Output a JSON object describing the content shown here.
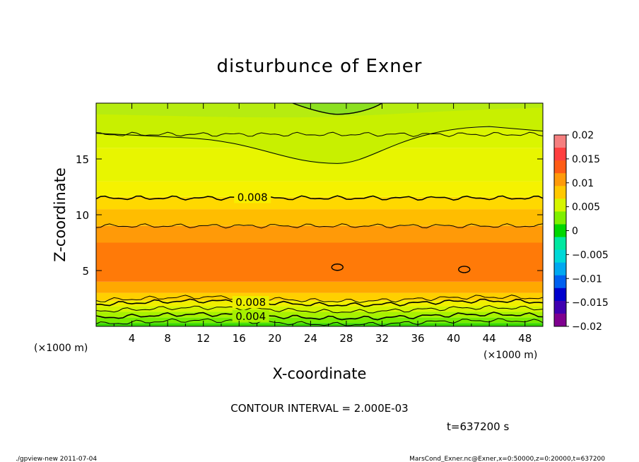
{
  "chart_data": {
    "type": "heatmap",
    "title": "disturbunce of Exner",
    "xlabel": "X-coordinate",
    "ylabel": "Z-coordinate",
    "x_unit_left": "(×1000 m)",
    "x_unit_right": "(×1000 m)",
    "xlim": [
      0,
      50
    ],
    "ylim": [
      0,
      20
    ],
    "x_ticks": [
      "4",
      "8",
      "12",
      "16",
      "20",
      "24",
      "28",
      "32",
      "36",
      "40",
      "44",
      "48"
    ],
    "y_ticks": [
      "5",
      "10",
      "15"
    ],
    "colorbar": {
      "min": -0.02,
      "max": 0.02,
      "ticks": [
        "0.02",
        "0.015",
        "0.01",
        "0.005",
        "0",
        "−0.005",
        "−0.01",
        "−0.015",
        "−0.02"
      ],
      "colors": [
        "#f57f7f",
        "#ff3f3f",
        "#ff5c15",
        "#ff9a0a",
        "#ffc800",
        "#d6f500",
        "#7ff000",
        "#00d700",
        "#00e8a0",
        "#00d8d8",
        "#00a8f0",
        "#0060f0",
        "#0000cd",
        "#4000b0",
        "#7f008f"
      ]
    },
    "contour_interval_text": "CONTOUR INTERVAL = 2.000E-03",
    "contour_labels": [
      "0.008",
      "0.008",
      "0.004"
    ],
    "bands": [
      {
        "z": [
          0.0,
          0.3
        ],
        "value": 0.0005,
        "color": "#38d800"
      },
      {
        "z": [
          0.3,
          0.8
        ],
        "value": 0.002,
        "color": "#76ec00"
      },
      {
        "z": [
          0.8,
          1.3
        ],
        "value": 0.004,
        "color": "#a8f200"
      },
      {
        "z": [
          1.3,
          1.8
        ],
        "value": 0.006,
        "color": "#d2f400"
      },
      {
        "z": [
          1.8,
          2.3
        ],
        "value": 0.008,
        "color": "#f0ef00"
      },
      {
        "z": [
          2.3,
          3.0
        ],
        "value": 0.009,
        "color": "#ffd000"
      },
      {
        "z": [
          3.0,
          4.0
        ],
        "value": 0.01,
        "color": "#ffa800"
      },
      {
        "z": [
          4.0,
          7.5
        ],
        "value": 0.012,
        "color": "#ff7a08"
      },
      {
        "z": [
          7.5,
          9.0
        ],
        "value": 0.011,
        "color": "#ff9a08"
      },
      {
        "z": [
          9.0,
          10.5
        ],
        "value": 0.01,
        "color": "#ffbd00"
      },
      {
        "z": [
          10.5,
          11.6
        ],
        "value": 0.009,
        "color": "#ffd800"
      },
      {
        "z": [
          11.6,
          13.0
        ],
        "value": 0.008,
        "color": "#f5f200"
      },
      {
        "z": [
          13.0,
          16.0
        ],
        "value": 0.007,
        "color": "#e8f500"
      },
      {
        "z": [
          16.0,
          17.8
        ],
        "value": 0.006,
        "color": "#daf500"
      },
      {
        "z": [
          17.8,
          20.0
        ],
        "value": 0.004,
        "color": "#b4ee1a"
      }
    ],
    "top_dip_band": {
      "x": [
        20,
        34
      ],
      "z_min": 14.5,
      "color": "#c6f000"
    },
    "top_cap": {
      "x": [
        22,
        32
      ],
      "z_min": 19.2,
      "color": "#8ce020"
    },
    "contours_z": [
      0.35,
      0.9,
      1.5,
      2.1,
      2.45,
      9.0,
      11.5,
      17.2
    ],
    "small_contours": [
      {
        "x": 27.0,
        "z": 5.3
      },
      {
        "x": 41.2,
        "z": 5.1
      }
    ],
    "grid": false
  },
  "footer": {
    "time_text": "t=637200 s",
    "left_text": "./gpview-new   2011-07-04",
    "right_text": "MarsCond_Exner.nc@Exner,x=0:50000,z=0:20000,t=637200"
  }
}
